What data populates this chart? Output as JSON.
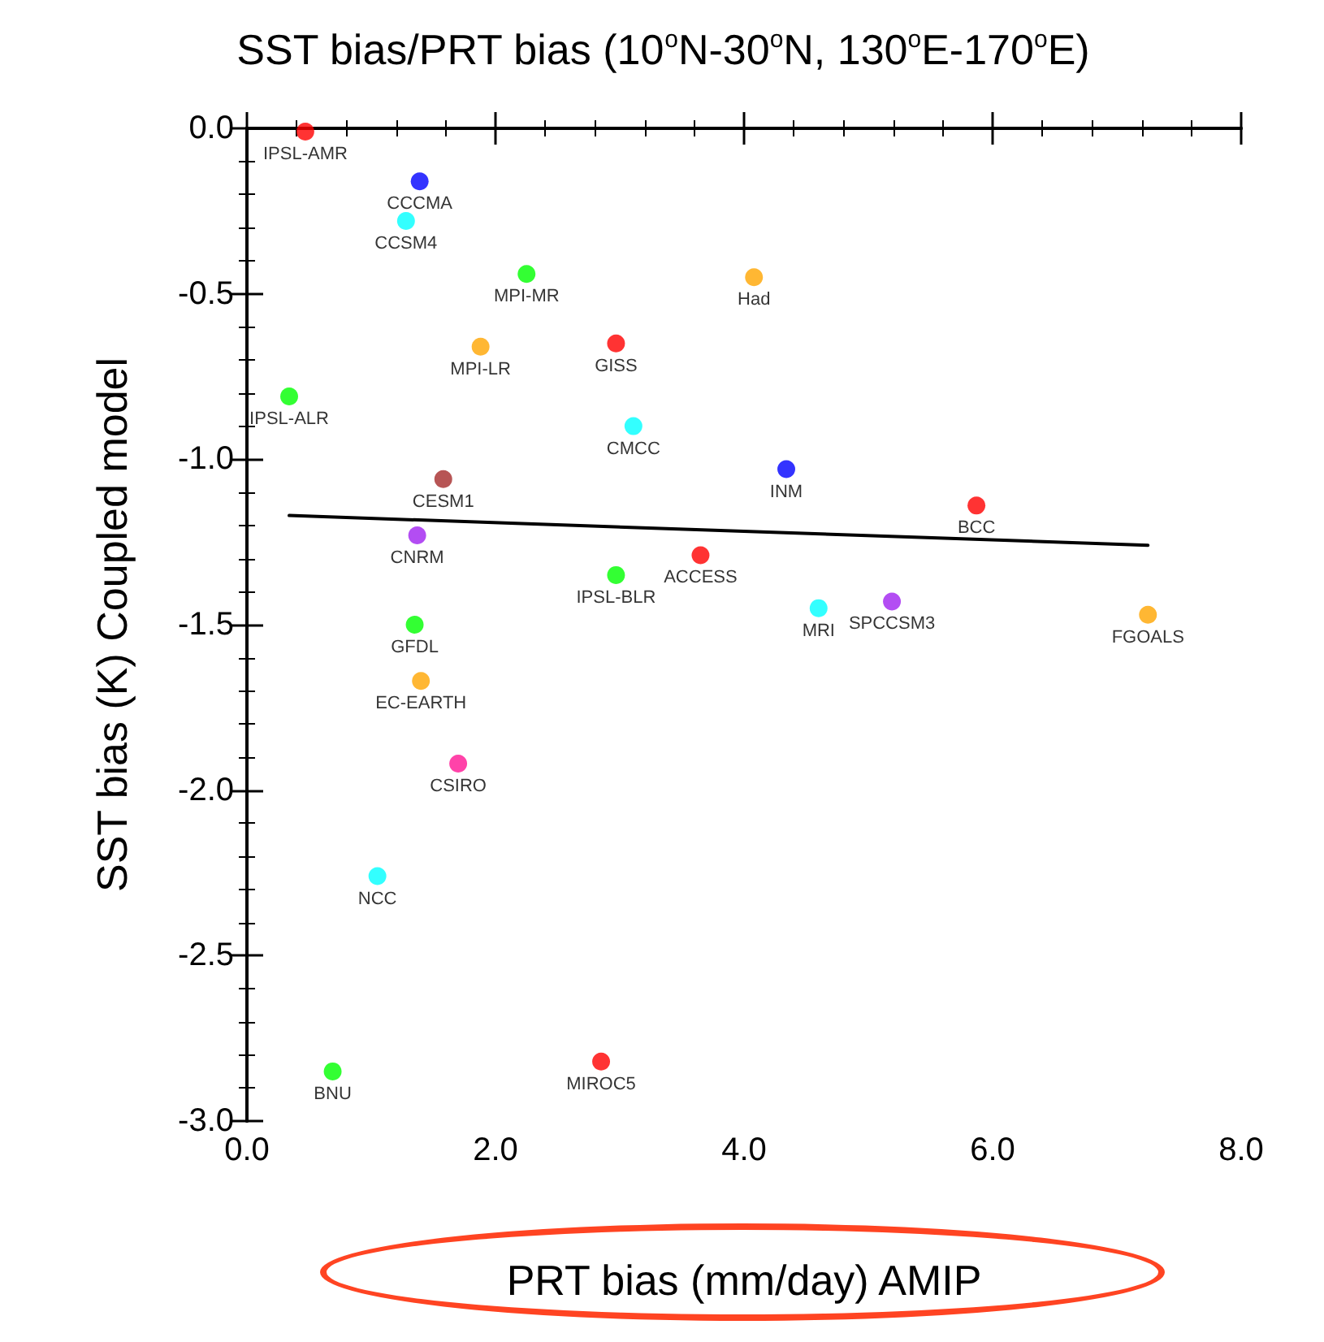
{
  "chart_data": {
    "type": "scatter",
    "title": "SST bias/PRT bias (10$^{o}$N-30$^{o}$N, 130$^{o}$E-170$^{o}$E)",
    "xlabel": "PRT bias (mm/day) AMIP",
    "ylabel": "SST bias (K) Coupled model",
    "xlim": [
      0,
      8
    ],
    "ylim": [
      -3,
      0
    ],
    "xticks": [
      {
        "value": 0,
        "label": "0.0"
      },
      {
        "value": 2,
        "label": "2.0"
      },
      {
        "value": 4,
        "label": "4.0"
      },
      {
        "value": 6,
        "label": "6.0"
      },
      {
        "value": 8,
        "label": "8.0"
      }
    ],
    "yticks": [
      {
        "value": -3,
        "label": "-3.0"
      },
      {
        "value": -2.5,
        "label": "-2.5"
      },
      {
        "value": -2,
        "label": "-2.0"
      },
      {
        "value": -1.5,
        "label": "-1.5"
      },
      {
        "value": -1,
        "label": "-1.0"
      },
      {
        "value": -0.5,
        "label": "-0.5"
      },
      {
        "value": 0,
        "label": "0.0"
      }
    ],
    "grid": false,
    "legend": false,
    "series": [
      {
        "marker": "circle",
        "x": [
          0.47,
          1.39,
          1.28,
          2.25,
          4.08,
          1.88,
          2.97,
          0.34,
          3.11,
          1.58,
          4.34,
          5.87,
          1.37,
          3.65,
          2.97,
          5.19,
          4.6,
          7.25,
          1.35,
          1.4,
          1.7,
          1.05,
          0.69,
          2.85
        ],
        "values": [
          -0.01,
          -0.16,
          -0.28,
          -0.44,
          -0.45,
          -0.66,
          -0.65,
          -0.81,
          -0.9,
          -1.06,
          -1.03,
          -1.14,
          -1.23,
          -1.29,
          -1.35,
          -1.43,
          -1.45,
          -1.47,
          -1.5,
          -1.67,
          -1.92,
          -2.26,
          -2.85,
          -2.82
        ],
        "colors": [
          "#ff0000",
          "#0000ff",
          "#00ffff",
          "#00ff00",
          "#ffa500",
          "#ffa500",
          "#ff0000",
          "#00ff00",
          "#00ffff",
          "#a52a2a",
          "#0000ff",
          "#ff0000",
          "#a020f0",
          "#ff0000",
          "#00ff00",
          "#a020f0",
          "#00ffff",
          "#ffa500",
          "#00ff00",
          "#ffa500",
          "#ff1493",
          "#00ffff",
          "#00ff00",
          "#ff0000"
        ],
        "value_labels": [
          "IPSL-AMR",
          "CCCMA",
          "CCSM4",
          "MPI-MR",
          "Had",
          "MPI-LR",
          "GISS",
          "IPSL-ALR",
          "CMCC",
          "CESM1",
          "INM",
          "BCC",
          "CNRM",
          "ACCESS",
          "IPSL-BLR",
          "SPCCSM3",
          "MRI",
          "FGOALS",
          "GFDL",
          "EC-EARTH",
          "CSIRO",
          "NCC",
          "BNU",
          "MIROC5"
        ]
      },
      {
        "type": "line",
        "color": "#000000",
        "x": [
          0.34,
          7.25
        ],
        "values": [
          -1.17,
          -1.26
        ],
        "line_style": "solid"
      }
    ]
  }
}
